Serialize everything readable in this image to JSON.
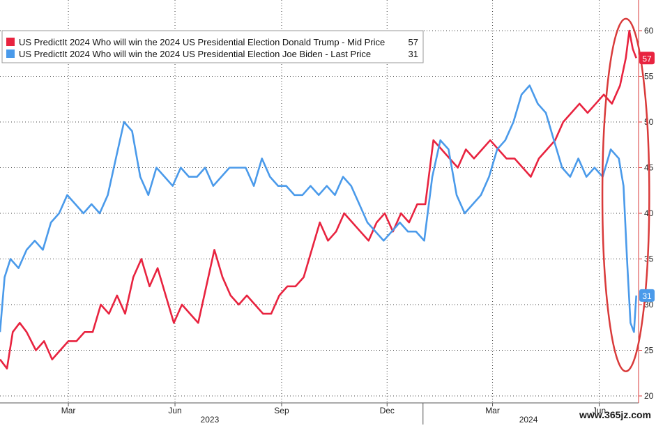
{
  "chart_data": {
    "type": "line",
    "title": "",
    "xlabel": "",
    "ylabel": "",
    "ylim": [
      20,
      62
    ],
    "y_ticks": [
      20,
      25,
      30,
      35,
      40,
      45,
      50,
      55,
      60
    ],
    "x_tick_labels": [
      "Mar",
      "Jun",
      "Sep",
      "Dec",
      "Mar",
      "Jun"
    ],
    "x_tick_dates": [
      "2023-03-01",
      "2023-06-01",
      "2023-09-01",
      "2023-12-01",
      "2024-03-01",
      "2024-06-01"
    ],
    "x_range": [
      "2023-01-01",
      "2024-07-05"
    ],
    "year_labels": [
      {
        "label": "2023",
        "date": "2023-07-01"
      },
      {
        "label": "2024",
        "date": "2024-04-01"
      }
    ],
    "year_divider_dates": [
      "2024-01-01"
    ],
    "legend_position": "top-left",
    "grid": true,
    "series": [
      {
        "name": "US PredictIt 2024 Who will win the 2024 US Presidential Election Donald Trump - Mid Price",
        "legend_value": "57",
        "last_label": "57",
        "color": "#e8233f",
        "points": [
          [
            "2023-01-01",
            24
          ],
          [
            "2023-01-07",
            23
          ],
          [
            "2023-01-12",
            27
          ],
          [
            "2023-01-18",
            28
          ],
          [
            "2023-01-24",
            27
          ],
          [
            "2023-02-01",
            25
          ],
          [
            "2023-02-08",
            26
          ],
          [
            "2023-02-15",
            24
          ],
          [
            "2023-02-22",
            25
          ],
          [
            "2023-03-01",
            26
          ],
          [
            "2023-03-08",
            26
          ],
          [
            "2023-03-15",
            27
          ],
          [
            "2023-03-22",
            27
          ],
          [
            "2023-03-29",
            30
          ],
          [
            "2023-04-05",
            29
          ],
          [
            "2023-04-12",
            31
          ],
          [
            "2023-04-19",
            29
          ],
          [
            "2023-04-26",
            33
          ],
          [
            "2023-05-03",
            35
          ],
          [
            "2023-05-10",
            32
          ],
          [
            "2023-05-17",
            34
          ],
          [
            "2023-05-24",
            31
          ],
          [
            "2023-05-31",
            28
          ],
          [
            "2023-06-07",
            30
          ],
          [
            "2023-06-14",
            29
          ],
          [
            "2023-06-21",
            28
          ],
          [
            "2023-06-28",
            32
          ],
          [
            "2023-07-05",
            36
          ],
          [
            "2023-07-12",
            33
          ],
          [
            "2023-07-19",
            31
          ],
          [
            "2023-07-26",
            30
          ],
          [
            "2023-08-02",
            31
          ],
          [
            "2023-08-09",
            30
          ],
          [
            "2023-08-16",
            29
          ],
          [
            "2023-08-23",
            29
          ],
          [
            "2023-08-30",
            31
          ],
          [
            "2023-09-06",
            32
          ],
          [
            "2023-09-13",
            32
          ],
          [
            "2023-09-20",
            33
          ],
          [
            "2023-09-27",
            36
          ],
          [
            "2023-10-04",
            39
          ],
          [
            "2023-10-11",
            37
          ],
          [
            "2023-10-18",
            38
          ],
          [
            "2023-10-25",
            40
          ],
          [
            "2023-11-01",
            39
          ],
          [
            "2023-11-08",
            38
          ],
          [
            "2023-11-15",
            37
          ],
          [
            "2023-11-22",
            39
          ],
          [
            "2023-11-29",
            40
          ],
          [
            "2023-12-06",
            38
          ],
          [
            "2023-12-13",
            40
          ],
          [
            "2023-12-20",
            39
          ],
          [
            "2023-12-27",
            41
          ],
          [
            "2024-01-03",
            41
          ],
          [
            "2024-01-10",
            48
          ],
          [
            "2024-01-17",
            47
          ],
          [
            "2024-01-24",
            46
          ],
          [
            "2024-01-31",
            45
          ],
          [
            "2024-02-07",
            47
          ],
          [
            "2024-02-14",
            46
          ],
          [
            "2024-02-21",
            47
          ],
          [
            "2024-02-28",
            48
          ],
          [
            "2024-03-06",
            47
          ],
          [
            "2024-03-13",
            46
          ],
          [
            "2024-03-20",
            46
          ],
          [
            "2024-03-27",
            45
          ],
          [
            "2024-04-03",
            44
          ],
          [
            "2024-04-10",
            46
          ],
          [
            "2024-04-17",
            47
          ],
          [
            "2024-04-24",
            48
          ],
          [
            "2024-05-01",
            50
          ],
          [
            "2024-05-08",
            51
          ],
          [
            "2024-05-15",
            52
          ],
          [
            "2024-05-22",
            51
          ],
          [
            "2024-05-29",
            52
          ],
          [
            "2024-06-05",
            53
          ],
          [
            "2024-06-12",
            52
          ],
          [
            "2024-06-19",
            54
          ],
          [
            "2024-06-24",
            57
          ],
          [
            "2024-06-27",
            60
          ],
          [
            "2024-06-30",
            58
          ],
          [
            "2024-07-03",
            57
          ]
        ]
      },
      {
        "name": "US PredictIt 2024 Who will win the 2024 US Presidential Election Joe Biden - Last Price",
        "legend_value": "31",
        "last_label": "31",
        "color": "#4a9aea",
        "points": [
          [
            "2023-01-01",
            27
          ],
          [
            "2023-01-05",
            33
          ],
          [
            "2023-01-10",
            35
          ],
          [
            "2023-01-17",
            34
          ],
          [
            "2023-01-24",
            36
          ],
          [
            "2023-01-31",
            37
          ],
          [
            "2023-02-07",
            36
          ],
          [
            "2023-02-14",
            39
          ],
          [
            "2023-02-21",
            40
          ],
          [
            "2023-02-28",
            42
          ],
          [
            "2023-03-07",
            41
          ],
          [
            "2023-03-14",
            40
          ],
          [
            "2023-03-21",
            41
          ],
          [
            "2023-03-28",
            40
          ],
          [
            "2023-04-04",
            42
          ],
          [
            "2023-04-11",
            46
          ],
          [
            "2023-04-18",
            50
          ],
          [
            "2023-04-25",
            49
          ],
          [
            "2023-05-02",
            44
          ],
          [
            "2023-05-09",
            42
          ],
          [
            "2023-05-16",
            45
          ],
          [
            "2023-05-23",
            44
          ],
          [
            "2023-05-30",
            43
          ],
          [
            "2023-06-06",
            45
          ],
          [
            "2023-06-13",
            44
          ],
          [
            "2023-06-20",
            44
          ],
          [
            "2023-06-27",
            45
          ],
          [
            "2023-07-04",
            43
          ],
          [
            "2023-07-11",
            44
          ],
          [
            "2023-07-18",
            45
          ],
          [
            "2023-07-25",
            45
          ],
          [
            "2023-08-01",
            45
          ],
          [
            "2023-08-08",
            43
          ],
          [
            "2023-08-15",
            46
          ],
          [
            "2023-08-22",
            44
          ],
          [
            "2023-08-29",
            43
          ],
          [
            "2023-09-05",
            43
          ],
          [
            "2023-09-12",
            42
          ],
          [
            "2023-09-19",
            42
          ],
          [
            "2023-09-26",
            43
          ],
          [
            "2023-10-03",
            42
          ],
          [
            "2023-10-10",
            43
          ],
          [
            "2023-10-17",
            42
          ],
          [
            "2023-10-24",
            44
          ],
          [
            "2023-10-31",
            43
          ],
          [
            "2023-11-07",
            41
          ],
          [
            "2023-11-14",
            39
          ],
          [
            "2023-11-21",
            38
          ],
          [
            "2023-11-28",
            37
          ],
          [
            "2023-12-05",
            38
          ],
          [
            "2023-12-12",
            39
          ],
          [
            "2023-12-19",
            38
          ],
          [
            "2023-12-26",
            38
          ],
          [
            "2024-01-02",
            37
          ],
          [
            "2024-01-09",
            44
          ],
          [
            "2024-01-16",
            48
          ],
          [
            "2024-01-23",
            47
          ],
          [
            "2024-01-30",
            42
          ],
          [
            "2024-02-06",
            40
          ],
          [
            "2024-02-13",
            41
          ],
          [
            "2024-02-20",
            42
          ],
          [
            "2024-02-27",
            44
          ],
          [
            "2024-03-05",
            47
          ],
          [
            "2024-03-12",
            48
          ],
          [
            "2024-03-19",
            50
          ],
          [
            "2024-03-26",
            53
          ],
          [
            "2024-04-02",
            54
          ],
          [
            "2024-04-09",
            52
          ],
          [
            "2024-04-16",
            51
          ],
          [
            "2024-04-23",
            48
          ],
          [
            "2024-04-30",
            45
          ],
          [
            "2024-05-07",
            44
          ],
          [
            "2024-05-14",
            46
          ],
          [
            "2024-05-21",
            44
          ],
          [
            "2024-05-28",
            45
          ],
          [
            "2024-06-04",
            44
          ],
          [
            "2024-06-11",
            47
          ],
          [
            "2024-06-18",
            46
          ],
          [
            "2024-06-22",
            43
          ],
          [
            "2024-06-25",
            35
          ],
          [
            "2024-06-28",
            28
          ],
          [
            "2024-07-01",
            27
          ],
          [
            "2024-07-03",
            31
          ]
        ]
      }
    ],
    "highlight": {
      "shape": "ellipse",
      "color": "#d93a3a",
      "date_range": [
        "2024-06-17",
        "2024-07-01"
      ],
      "y_range": [
        23,
        61
      ]
    }
  },
  "watermark": "www.365jz.com"
}
